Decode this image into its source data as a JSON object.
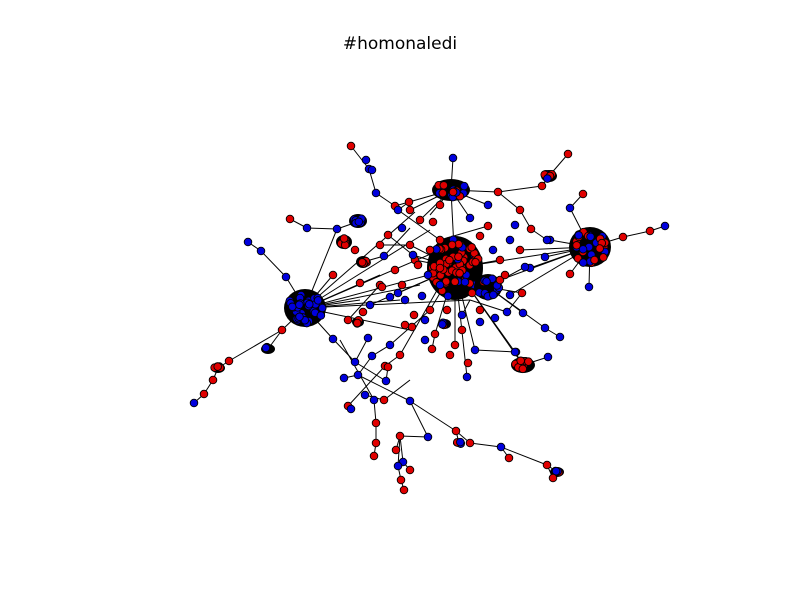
{
  "title": "#homonaledi",
  "colors": {
    "node_red": "#e00000",
    "node_blue": "#0000dd",
    "node_outline": "#000000",
    "edge": "#000000",
    "background": "#ffffff"
  }
}
